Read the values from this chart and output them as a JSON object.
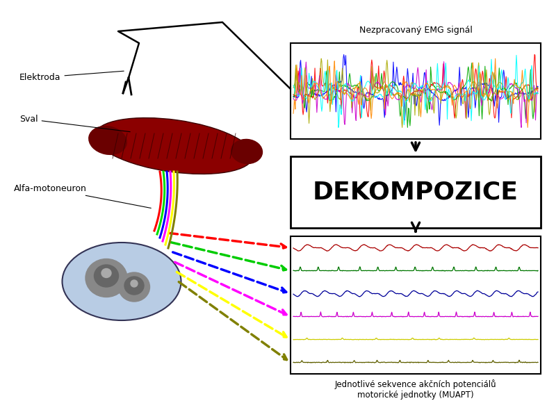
{
  "bg_color": "#ffffff",
  "title_emg": "Nezpracovaný EMG signál",
  "title_decomp": "DEKOMPOZICE",
  "title_muapt": "Jednotlivé sekvence akčních potenciálů\nmotorické jednotky (MUAPT)",
  "label_elektroda": "Elektroda",
  "label_sval": "Sval",
  "label_alfa": "Alfa-motoneuron",
  "nerve_colors": [
    "red",
    "#00dd00",
    "blue",
    "magenta",
    "yellow",
    "#808000"
  ],
  "muapt_colors": [
    "#aa0000",
    "#007700",
    "#000099",
    "#cc00cc",
    "#cccc00",
    "#606000"
  ],
  "arrow_colors": [
    "red",
    "#00cc00",
    "blue",
    "magenta",
    "yellow",
    "#808000"
  ],
  "emg_signal_colors": [
    "blue",
    "red",
    "#00aa00",
    "#cc00cc",
    "#aaaa00",
    "cyan",
    "#ff8800"
  ],
  "fig_width": 7.87,
  "fig_height": 5.9,
  "dpi": 100
}
